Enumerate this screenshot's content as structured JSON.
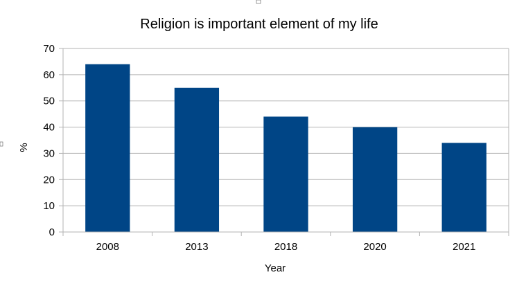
{
  "chart_data": {
    "type": "bar",
    "title": "Religion is important element of my life",
    "xlabel": "Year",
    "ylabel": "%",
    "categories": [
      "2008",
      "2013",
      "2018",
      "2020",
      "2021"
    ],
    "values": [
      64,
      55,
      44,
      40,
      34
    ],
    "ylim": [
      0,
      70
    ],
    "yticks": [
      "0",
      "10",
      "20",
      "30",
      "40",
      "50",
      "60",
      "70"
    ],
    "grid": true,
    "legend": "none",
    "bar_color": "#004586",
    "grid_color": "#b3b3b3"
  }
}
